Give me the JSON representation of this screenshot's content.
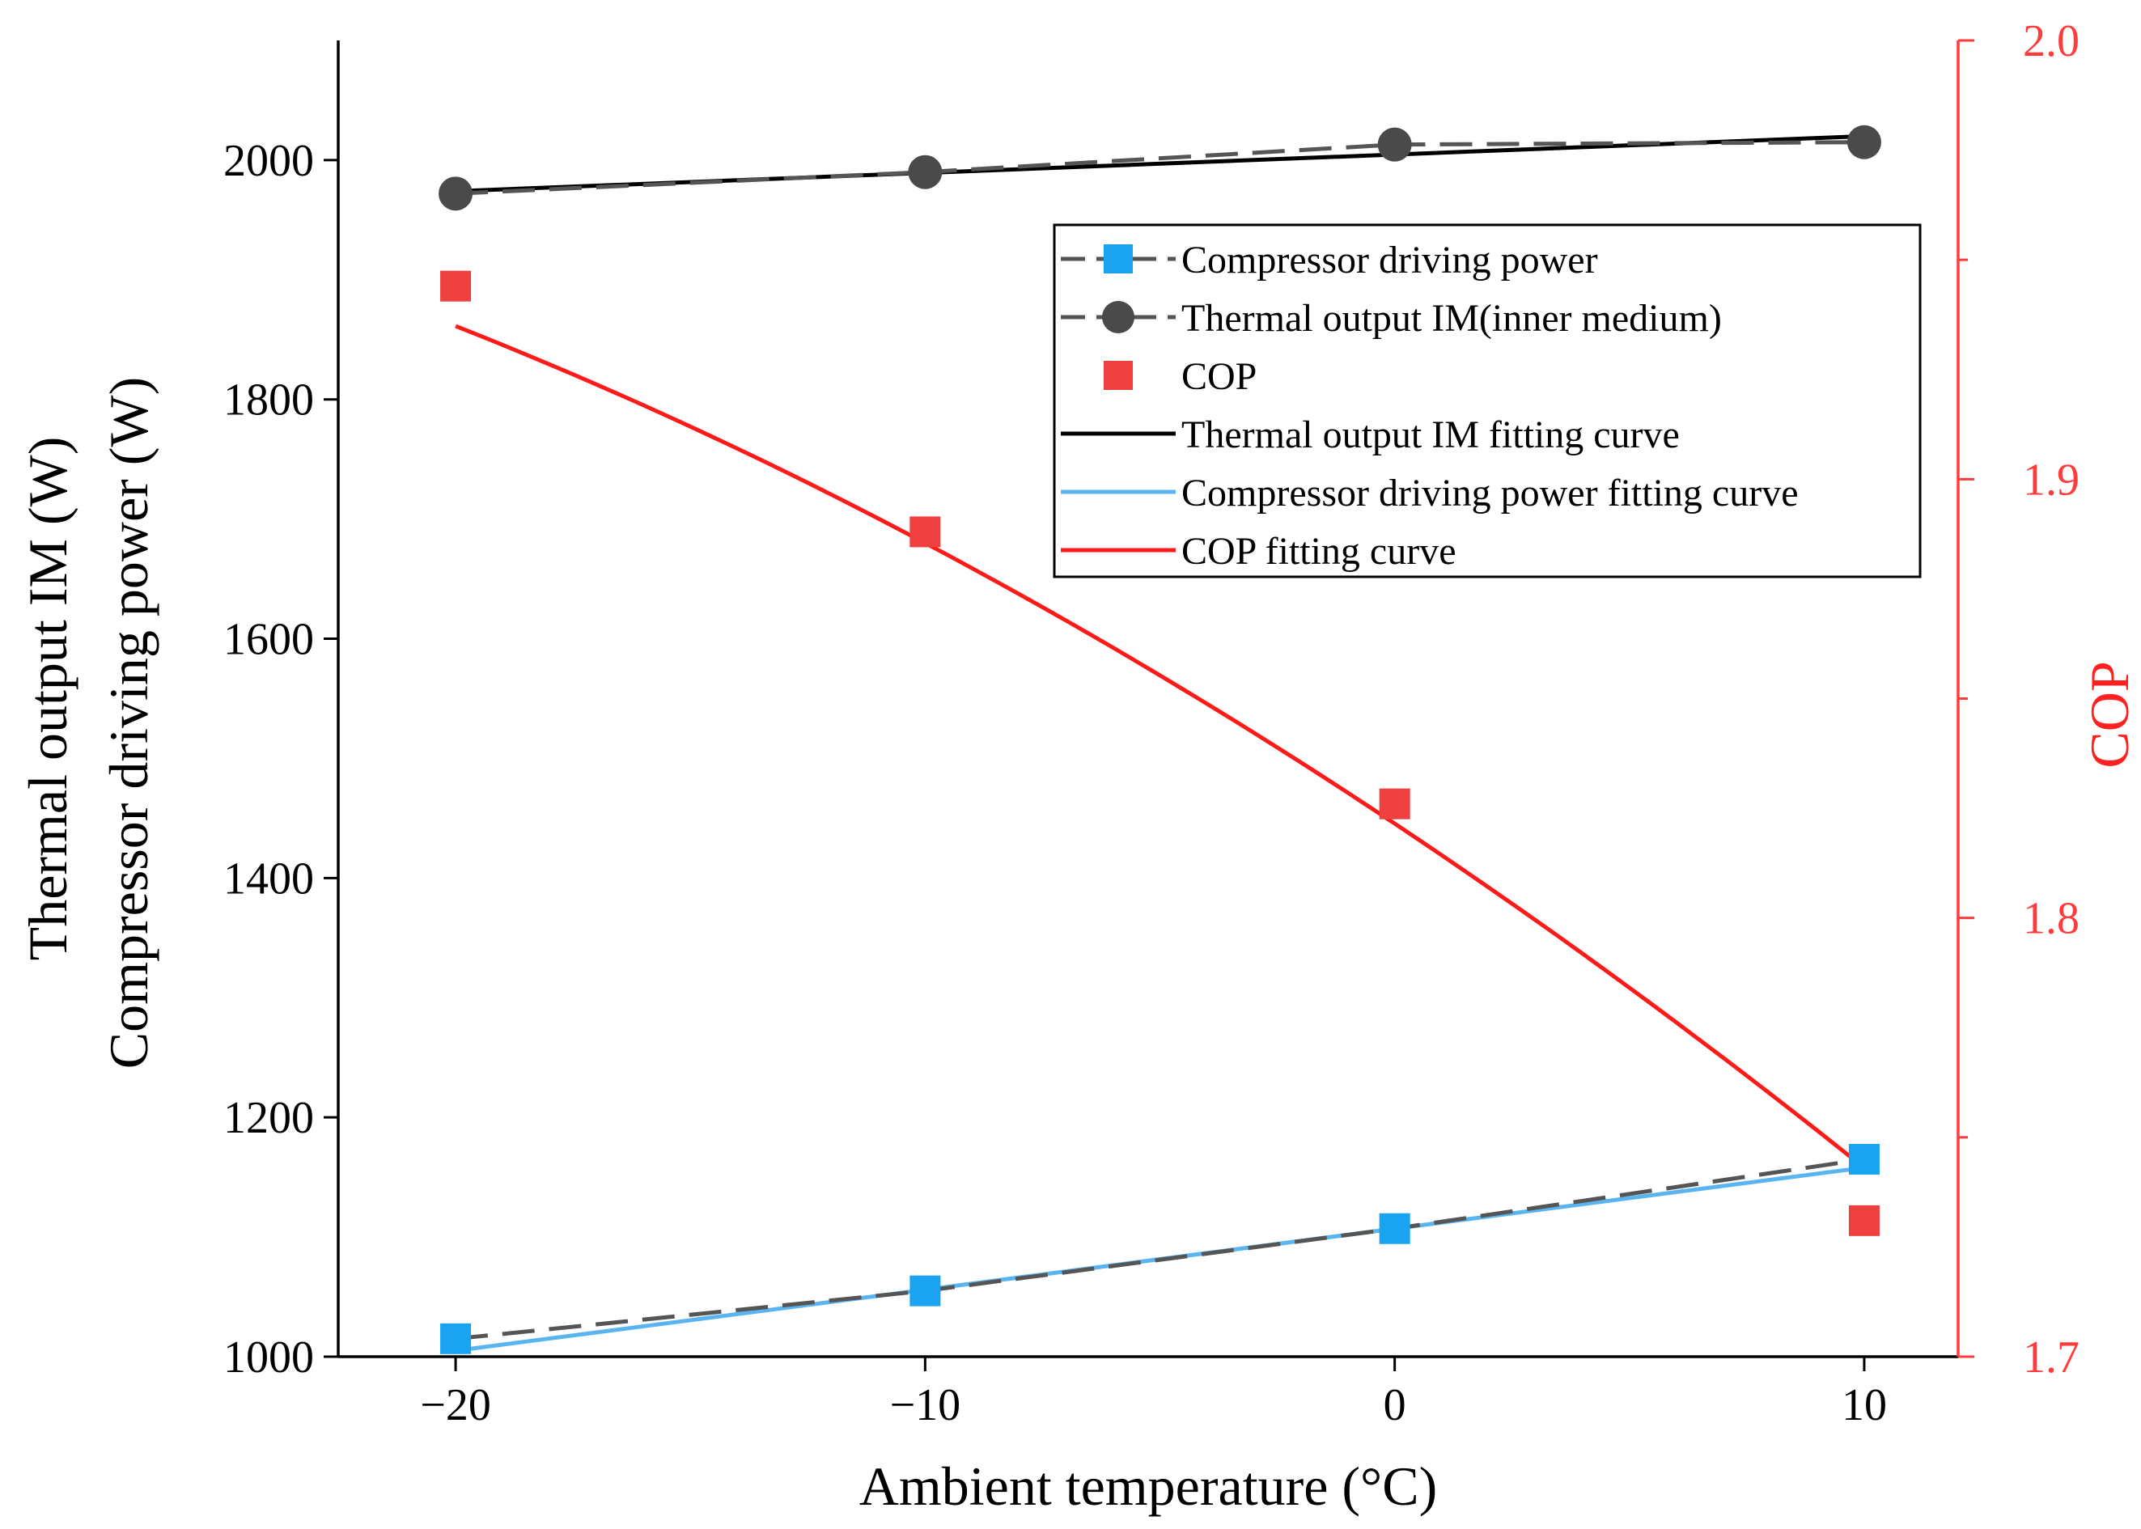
{
  "chart_data": {
    "type": "line",
    "x": [
      -20,
      -10,
      0,
      10
    ],
    "xlabel": "Ambient temperature (°C)",
    "ylabel_lines": [
      "Thermal output IM  (W)",
      "Compressor driving power (W)"
    ],
    "ylabel_right": "COP",
    "xlim": [
      -22.5,
      12
    ],
    "ylim": [
      1000,
      2100
    ],
    "ylim_right": [
      1.7,
      2.0
    ],
    "xticks": [
      -20,
      -10,
      0,
      10
    ],
    "xtick_labels": [
      "−20",
      "−10",
      "0",
      "10"
    ],
    "yticks": [
      1000,
      1200,
      1400,
      1600,
      1800,
      2000
    ],
    "yticks_right": [
      1.7,
      1.8,
      1.9,
      2.0
    ],
    "yticks_right_labels": [
      "1.7",
      "1.8",
      "1.9",
      "2.0"
    ],
    "yticks_right_minor": [
      1.75,
      1.85,
      1.95
    ],
    "series": [
      {
        "id": "power",
        "name": "Compressor driving power",
        "axis": "left",
        "marker": "square",
        "color": "#1aa3f0",
        "line": "dash",
        "line_color": "#555555",
        "values": [
          1015,
          1055,
          1107,
          1165
        ]
      },
      {
        "id": "thermal",
        "name": "Thermal output IM(inner medium)",
        "axis": "left",
        "marker": "circle",
        "color": "#4a4a4a",
        "line": "dash",
        "line_color": "#555555",
        "values": [
          1972,
          1990,
          2013,
          2015
        ]
      },
      {
        "id": "cop",
        "name": "COP",
        "axis": "right",
        "marker": "square",
        "color": "#ef4040",
        "line": "none",
        "values": [
          1.944,
          1.888,
          1.826,
          1.731
        ]
      }
    ],
    "fits": [
      {
        "id": "thermal-fit",
        "name": "Thermal output IM fitting curve",
        "axis": "left",
        "color": "#000000",
        "type": "linear",
        "endpoints": [
          1974,
          2020
        ]
      },
      {
        "id": "power-fit",
        "name": "Compressor driving power fitting curve",
        "axis": "left",
        "color": "#5ab4f0",
        "type": "linear",
        "endpoints": [
          1005,
          1158
        ]
      },
      {
        "id": "cop-fit",
        "name": "COP fitting curve",
        "axis": "right",
        "color": "#ff1a1a",
        "type": "quadratic",
        "coeffs": [
          1.8215,
          -0.00712,
          -7.25e-05
        ]
      }
    ],
    "legend": {
      "position": "top-right",
      "items": [
        {
          "label": "Compressor driving power",
          "symbol": "square-dash",
          "color": "#1aa3f0"
        },
        {
          "label": "Thermal output IM(inner medium)",
          "symbol": "circle-dash",
          "color": "#4a4a4a"
        },
        {
          "label": "COP",
          "symbol": "square",
          "color": "#ef4040"
        },
        {
          "label": "Thermal output IM fitting curve",
          "symbol": "line",
          "color": "#000000"
        },
        {
          "label": "Compressor driving power fitting curve",
          "symbol": "line",
          "color": "#5ab4f0"
        },
        {
          "label": "COP fitting curve",
          "symbol": "line",
          "color": "#ff1a1a"
        }
      ]
    }
  }
}
